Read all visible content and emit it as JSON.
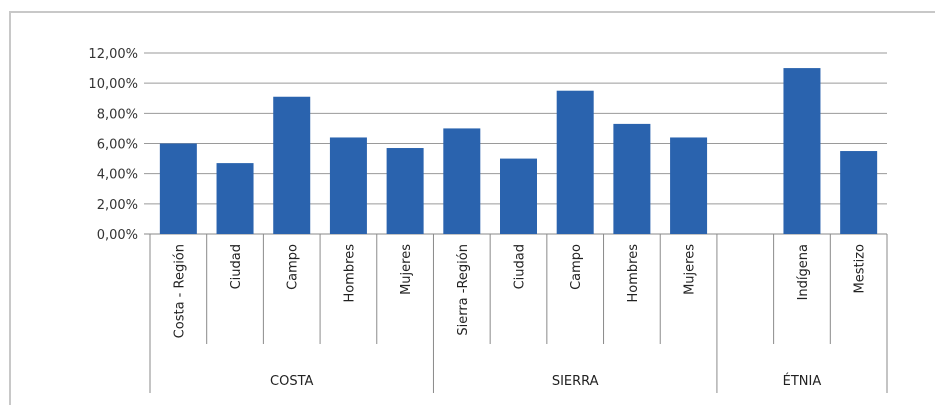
{
  "chart_data": {
    "type": "bar",
    "title": "",
    "xlabel": "",
    "ylabel": "",
    "ylim": [
      0,
      12
    ],
    "y_ticks": [
      "0,00%",
      "2,00%",
      "4,00%",
      "6,00%",
      "8,00%",
      "10,00%",
      "12,00%"
    ],
    "grid": true,
    "bar_color": "#2a63ae",
    "categories": [
      "Costa - Región",
      "Ciudad",
      "Campo",
      "Hombres",
      "Mujeres",
      "Sierra -Región",
      "Ciudad",
      "Campo",
      "Hombres",
      "Mujeres",
      "",
      "Indígena",
      "Mestizo"
    ],
    "values": [
      6.0,
      4.7,
      9.1,
      6.4,
      5.7,
      7.0,
      5.0,
      9.5,
      7.3,
      6.4,
      null,
      11.0,
      5.5
    ],
    "groups": [
      {
        "label": "COSTA",
        "span": [
          0,
          4
        ]
      },
      {
        "label": "SIERRA",
        "span": [
          5,
          9
        ]
      },
      {
        "label": "ÉTNIA",
        "span": [
          10,
          12
        ]
      }
    ]
  }
}
